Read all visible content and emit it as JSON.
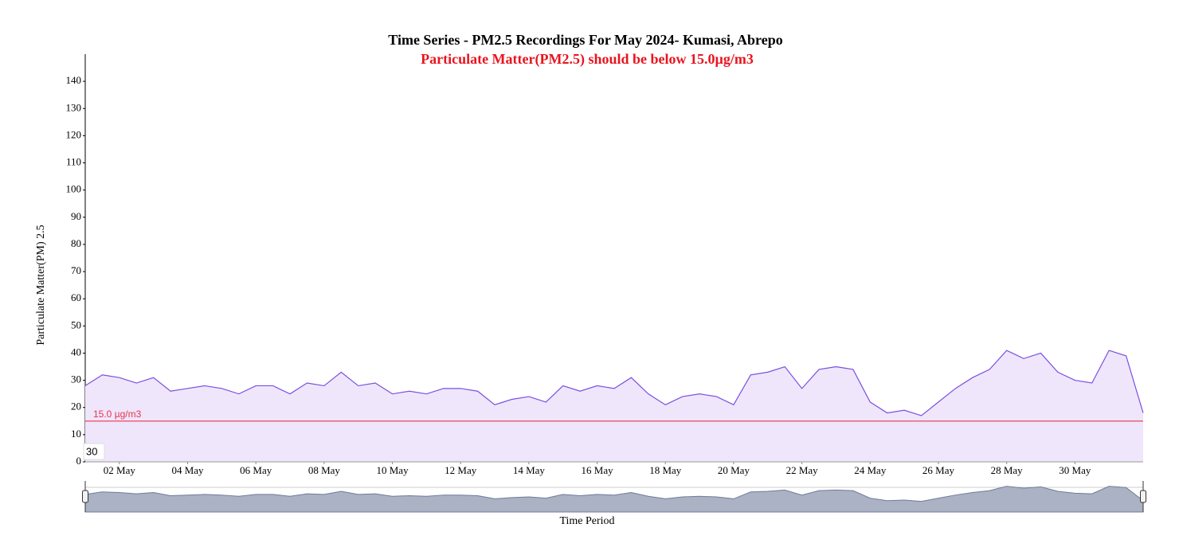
{
  "chart_data": {
    "type": "area",
    "title": "Time Series - PM2.5 Recordings For May 2024- Kumasi, Abrepo",
    "subtitle": "Particulate Matter(PM2.5) should be below 15.0µg/m3",
    "y_label": "Particulate Matter(PM) 2.5",
    "x_label": "Time Period",
    "range_box": "30",
    "x": [
      1,
      1.5,
      2,
      2.5,
      3,
      3.5,
      4,
      4.5,
      5,
      5.5,
      6,
      6.5,
      7,
      7.5,
      8,
      8.5,
      9,
      9.5,
      10,
      10.5,
      11,
      11.5,
      12,
      12.5,
      13,
      13.5,
      14,
      14.5,
      15,
      15.5,
      16,
      16.5,
      17,
      17.5,
      18,
      18.5,
      19,
      19.5,
      20,
      20.5,
      21,
      21.5,
      22,
      22.5,
      23,
      23.5,
      24,
      24.5,
      25,
      25.5,
      26,
      26.5,
      27,
      27.5,
      28,
      28.5,
      29,
      29.5,
      30,
      30.5,
      31,
      31.5,
      32
    ],
    "series": [
      {
        "name": "PM2.5",
        "color": "#7b4fe0",
        "fill": "#efe6fc",
        "values": [
          28,
          32,
          31,
          29,
          31,
          26,
          27,
          28,
          27,
          25,
          28,
          28,
          25,
          29,
          28,
          33,
          28,
          29,
          25,
          26,
          25,
          27,
          27,
          26,
          21,
          23,
          24,
          22,
          28,
          26,
          28,
          27,
          31,
          25,
          21,
          24,
          25,
          24,
          21,
          32,
          33,
          35,
          27,
          34,
          35,
          34,
          22,
          18,
          19,
          17,
          22,
          27,
          31,
          34,
          41,
          38,
          40,
          33,
          30,
          29,
          41,
          39,
          18
        ]
      }
    ],
    "threshold": {
      "value": 15,
      "label": "15.0 µg/m3",
      "color": "#e8354a"
    },
    "xlim": [
      1,
      32
    ],
    "xticks": [
      {
        "value": 2,
        "label": "02 May"
      },
      {
        "value": 4,
        "label": "04 May"
      },
      {
        "value": 6,
        "label": "06 May"
      },
      {
        "value": 8,
        "label": "08 May"
      },
      {
        "value": 10,
        "label": "10 May"
      },
      {
        "value": 12,
        "label": "12 May"
      },
      {
        "value": 14,
        "label": "14 May"
      },
      {
        "value": 16,
        "label": "16 May"
      },
      {
        "value": 18,
        "label": "18 May"
      },
      {
        "value": 20,
        "label": "20 May"
      },
      {
        "value": 22,
        "label": "22 May"
      },
      {
        "value": 24,
        "label": "24 May"
      },
      {
        "value": 26,
        "label": "26 May"
      },
      {
        "value": 28,
        "label": "28 May"
      },
      {
        "value": 30,
        "label": "30 May"
      }
    ],
    "ylim": [
      0,
      150
    ],
    "yticks": [
      0,
      10,
      20,
      30,
      40,
      50,
      60,
      70,
      80,
      90,
      100,
      110,
      120,
      130,
      140
    ]
  }
}
